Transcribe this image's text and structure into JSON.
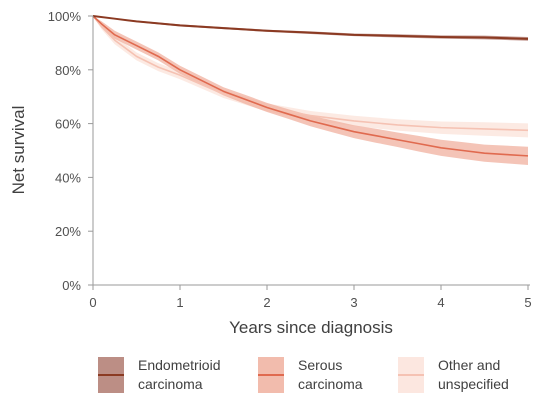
{
  "chart_data": {
    "type": "line",
    "title": "",
    "xlabel": "Years since diagnosis",
    "ylabel": "Net survival",
    "xlim": [
      0,
      5
    ],
    "ylim": [
      0,
      100
    ],
    "x_ticks": [
      "0",
      "1",
      "2",
      "3",
      "4",
      "5"
    ],
    "y_ticks": [
      "0%",
      "20%",
      "40%",
      "60%",
      "80%",
      "100%"
    ],
    "grid": false,
    "legend_placement": "bottom",
    "series": [
      {
        "name": "Endometrioid carcinoma",
        "legend_lines": [
          "Endometrioid",
          "carcinoma"
        ],
        "color": "#8b3a22",
        "band_color": "#b07a70",
        "x": [
          0,
          0.25,
          0.5,
          1,
          1.5,
          2,
          2.5,
          3,
          3.5,
          4,
          4.5,
          5
        ],
        "y": [
          100,
          99,
          98,
          96.5,
          95.5,
          94.5,
          93.8,
          93,
          92.6,
          92.2,
          92,
          91.5
        ],
        "lower": [
          100,
          98.8,
          97.7,
          96.1,
          95.1,
          94.1,
          93.3,
          92.5,
          92,
          91.6,
          91.3,
          90.8
        ],
        "upper": [
          100,
          99.2,
          98.3,
          96.9,
          95.9,
          94.9,
          94.3,
          93.5,
          93.2,
          92.8,
          92.7,
          92.2
        ]
      },
      {
        "name": "Serous carcinoma",
        "legend_lines": [
          "Serous",
          "carcinoma"
        ],
        "color": "#e06a4f",
        "band_color": "#f0b09f",
        "x": [
          0,
          0.1,
          0.25,
          0.5,
          0.75,
          1,
          1.25,
          1.5,
          1.75,
          2,
          2.25,
          2.5,
          2.75,
          3,
          3.25,
          3.5,
          3.75,
          4,
          4.25,
          4.5,
          4.75,
          5
        ],
        "y": [
          100,
          97,
          93,
          89,
          85,
          80,
          76,
          72,
          69,
          66,
          63.5,
          61,
          59,
          57,
          55.5,
          54,
          52.5,
          51,
          50,
          49,
          48.5,
          48
        ],
        "lower": [
          100,
          96,
          91.5,
          87.5,
          83.5,
          78.5,
          74.5,
          70.5,
          67.3,
          64.3,
          61.7,
          59,
          56.8,
          54.6,
          52.9,
          51.3,
          49.6,
          48,
          46.9,
          45.8,
          45.2,
          44.6
        ],
        "upper": [
          100,
          98,
          94.5,
          90.5,
          86.5,
          81.5,
          77.5,
          73.5,
          70.7,
          67.7,
          65.3,
          63,
          61.2,
          59.4,
          58.1,
          56.7,
          55.4,
          54,
          53.1,
          52.2,
          51.8,
          51.4
        ]
      },
      {
        "name": "Other and unspecified",
        "legend_lines": [
          "Other and",
          "unspecified"
        ],
        "color": "#f5c2b3",
        "band_color": "#fbe3da",
        "x": [
          0,
          0.1,
          0.25,
          0.5,
          0.75,
          1,
          1.25,
          1.5,
          1.75,
          2,
          2.5,
          3,
          3.5,
          4,
          4.5,
          5
        ],
        "y": [
          100,
          96,
          91,
          85,
          81,
          78,
          74.5,
          71,
          68.5,
          66,
          63,
          61,
          59.5,
          58.5,
          58,
          57.5
        ],
        "lower": [
          100,
          95,
          89.5,
          83.5,
          79.5,
          76.5,
          73,
          69.5,
          67,
          64.5,
          61.3,
          59.1,
          57.4,
          56.2,
          55.5,
          54.9
        ],
        "upper": [
          100,
          97,
          92.5,
          86.5,
          82.5,
          79.5,
          76,
          72.5,
          70,
          67.5,
          64.7,
          62.9,
          61.6,
          60.8,
          60.5,
          60.1
        ]
      }
    ]
  }
}
